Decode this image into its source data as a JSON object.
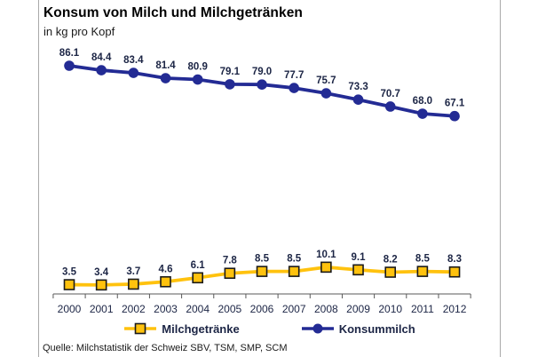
{
  "title": "Konsum von Milch und Milchgetränken",
  "subtitle": "in kg pro Kopf",
  "source": "Quelle: Milchstatistik der Schweiz  SBV, TSM, SMP, SCM",
  "legend": [
    {
      "label": "Milchgetränke",
      "marker": "square",
      "color": "#FFC20E",
      "marker_stroke": "#1a1a1a"
    },
    {
      "label": "Konsummilch",
      "marker": "circle",
      "color": "#232B94",
      "marker_stroke": "#232B94"
    }
  ],
  "colors": {
    "konsummilch": "#232B94",
    "milchgetraenke": "#FFC20E",
    "marker_outline": "#1a1a1a",
    "axis": "#595959",
    "label_text": "#1c2545"
  },
  "chart_data": {
    "type": "line",
    "title": "Konsum von Milch und Milchgetränken",
    "subtitle": "in kg pro Kopf",
    "xlabel": "",
    "ylabel": "kg pro Kopf",
    "x": [
      "2000",
      "2001",
      "2002",
      "2003",
      "2004",
      "2005",
      "2006",
      "2007",
      "2008",
      "2009",
      "2010",
      "2011",
      "2012"
    ],
    "series": [
      {
        "name": "Konsummilch",
        "marker": "circle",
        "color": "#232B94",
        "values": [
          86.1,
          84.4,
          83.4,
          81.4,
          80.9,
          79.1,
          79.0,
          77.7,
          75.7,
          73.3,
          70.7,
          68.0,
          67.1
        ]
      },
      {
        "name": "Milchgetränke",
        "marker": "square",
        "color": "#FFC20E",
        "values": [
          3.5,
          3.4,
          3.7,
          4.6,
          6.1,
          7.8,
          8.5,
          8.5,
          10.1,
          9.1,
          8.2,
          8.5,
          8.3
        ]
      }
    ],
    "ylim": [
      0,
      95
    ],
    "grid": false,
    "data_labels": true,
    "legend_position": "bottom",
    "source": "Quelle: Milchstatistik der Schweiz  SBV, TSM, SMP, SCM"
  }
}
